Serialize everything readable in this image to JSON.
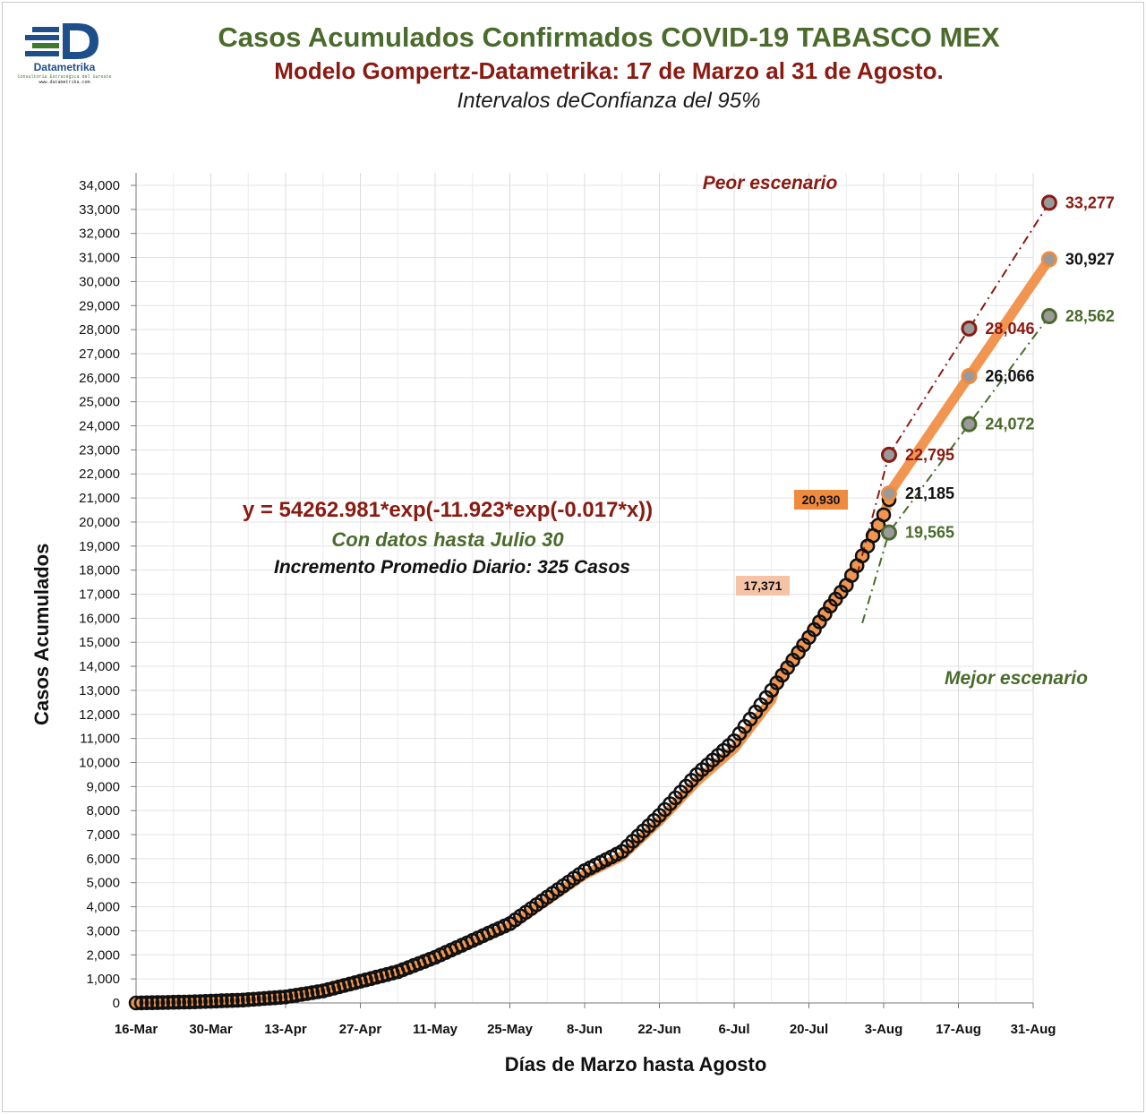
{
  "header": {
    "title": "Casos Acumulados Confirmados COVID-19 TABASCO MEX",
    "subtitle": "Modelo Gompertz-Datametrika: 17 de Marzo al 31 de Agosto.",
    "note": "Intervalos deConfianza del 95%"
  },
  "logo": {
    "name": "Datametrika",
    "tagline": "Consultoría Estratégica del Sureste",
    "url": "www.datametrika.com"
  },
  "annotations": {
    "equation": "y = 54262.981*exp(-11.923*exp(-0.017*x))",
    "data_until": "Con datos hasta Julio 30",
    "daily_increase": "Incremento Promedio Diario: 325 Casos",
    "worst_case": "Peor escenario",
    "best_case": "Mejor escenario",
    "box_low": "17,371",
    "box_high": "20,930"
  },
  "colors": {
    "model": "#f08a3e",
    "upper": "#8b1a12",
    "lower": "#4a6b2c",
    "observed": "#111111",
    "title": "#4a6b2c",
    "subtitle": "#8b1a12"
  },
  "chart_data": {
    "type": "line",
    "xlabel": "Días de Marzo hasta Agosto",
    "ylabel": "Casos Acumulados",
    "x_tick_labels": [
      "16-Mar",
      "30-Mar",
      "13-Apr",
      "27-Apr",
      "11-May",
      "25-May",
      "8-Jun",
      "22-Jun",
      "6-Jul",
      "20-Jul",
      "3-Aug",
      "17-Aug",
      "31-Aug"
    ],
    "ylim": [
      0,
      34000
    ],
    "y_tick_step": 1000,
    "grid": true,
    "model": {
      "a": 54262.981,
      "b": 11.923,
      "c": 0.017
    },
    "observed_anchors": [
      [
        0,
        0
      ],
      [
        10,
        40
      ],
      [
        20,
        120
      ],
      [
        28,
        250
      ],
      [
        35,
        500
      ],
      [
        42,
        900
      ],
      [
        49,
        1300
      ],
      [
        56,
        1900
      ],
      [
        63,
        2600
      ],
      [
        70,
        3300
      ],
      [
        77,
        4400
      ],
      [
        84,
        5500
      ],
      [
        91,
        6300
      ],
      [
        98,
        7800
      ],
      [
        105,
        9500
      ],
      [
        112,
        10900
      ],
      [
        119,
        13000
      ],
      [
        126,
        15200
      ],
      [
        130,
        16500
      ],
      [
        133,
        17371
      ],
      [
        137,
        19000
      ],
      [
        140,
        20300
      ],
      [
        141,
        20930
      ]
    ],
    "projection_points": [
      {
        "x": 136,
        "y": 17000
      },
      {
        "x": 141,
        "value": 21185,
        "label": "21,185",
        "series": "model"
      },
      {
        "x": 156,
        "value": 26066,
        "label": "26,066",
        "series": "model"
      },
      {
        "x": 171,
        "value": 30927,
        "label": "30,927",
        "series": "model"
      },
      {
        "x": 141,
        "value": 22795,
        "label": "22,795",
        "series": "upper"
      },
      {
        "x": 156,
        "value": 28046,
        "label": "28,046",
        "series": "upper"
      },
      {
        "x": 171,
        "value": 33277,
        "label": "33,277",
        "series": "upper"
      },
      {
        "x": 141,
        "value": 19565,
        "label": "19,565",
        "series": "lower"
      },
      {
        "x": 156,
        "value": 24072,
        "label": "24,072",
        "series": "lower"
      },
      {
        "x": 171,
        "value": 28562,
        "label": "28,562",
        "series": "lower"
      }
    ]
  }
}
